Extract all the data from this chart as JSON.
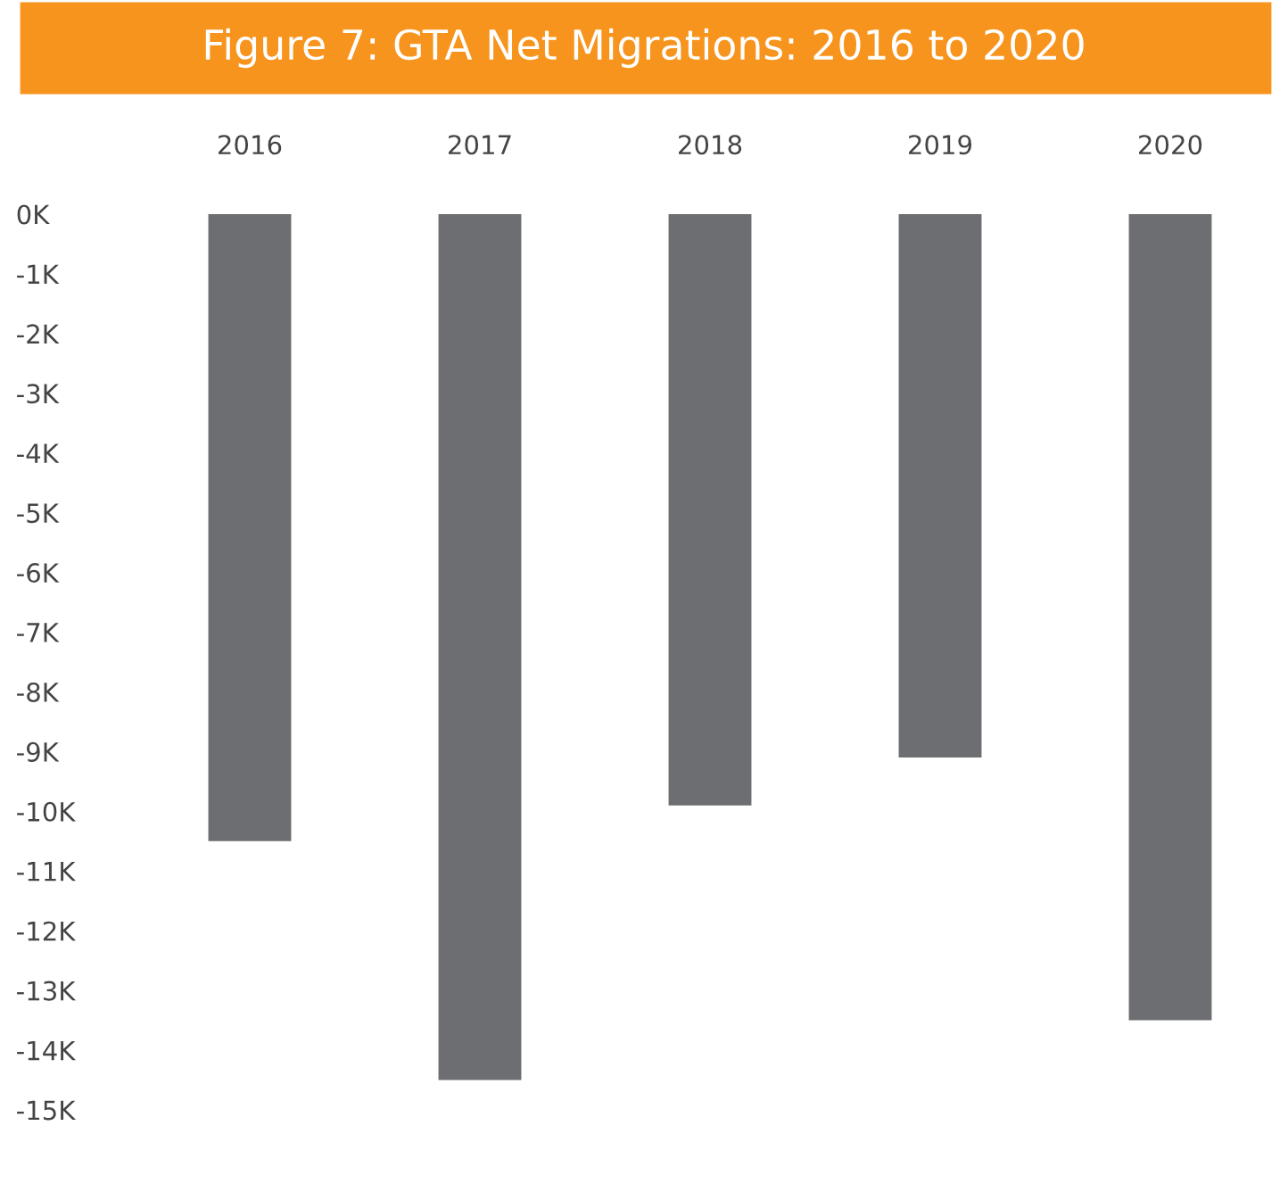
{
  "chart_data": {
    "type": "bar",
    "title": "Figure 7: GTA Net Migrations: 2016 to 2020",
    "categories": [
      "2016",
      "2017",
      "2018",
      "2019",
      "2020"
    ],
    "values": [
      -10.5,
      -14.5,
      -9.9,
      -9.1,
      -13.5
    ],
    "color": "#6d6e71",
    "ylim": [
      -15,
      0
    ],
    "yticks": [
      {
        "value": 0,
        "label": "0K"
      },
      {
        "value": -1,
        "label": "-1K"
      },
      {
        "value": -2,
        "label": "-2K"
      },
      {
        "value": -3,
        "label": "-3K"
      },
      {
        "value": -4,
        "label": "-4K"
      },
      {
        "value": -5,
        "label": "-5K"
      },
      {
        "value": -6,
        "label": "-6K"
      },
      {
        "value": -7,
        "label": "-7K"
      },
      {
        "value": -8,
        "label": "-8K"
      },
      {
        "value": -9,
        "label": "-9K"
      },
      {
        "value": -10,
        "label": "-10K"
      },
      {
        "value": -11,
        "label": "-11K"
      },
      {
        "value": -12,
        "label": "-12K"
      },
      {
        "value": -13,
        "label": "-13K"
      },
      {
        "value": -14,
        "label": "-14K"
      },
      {
        "value": -15,
        "label": "-15K"
      }
    ],
    "grid": false
  }
}
